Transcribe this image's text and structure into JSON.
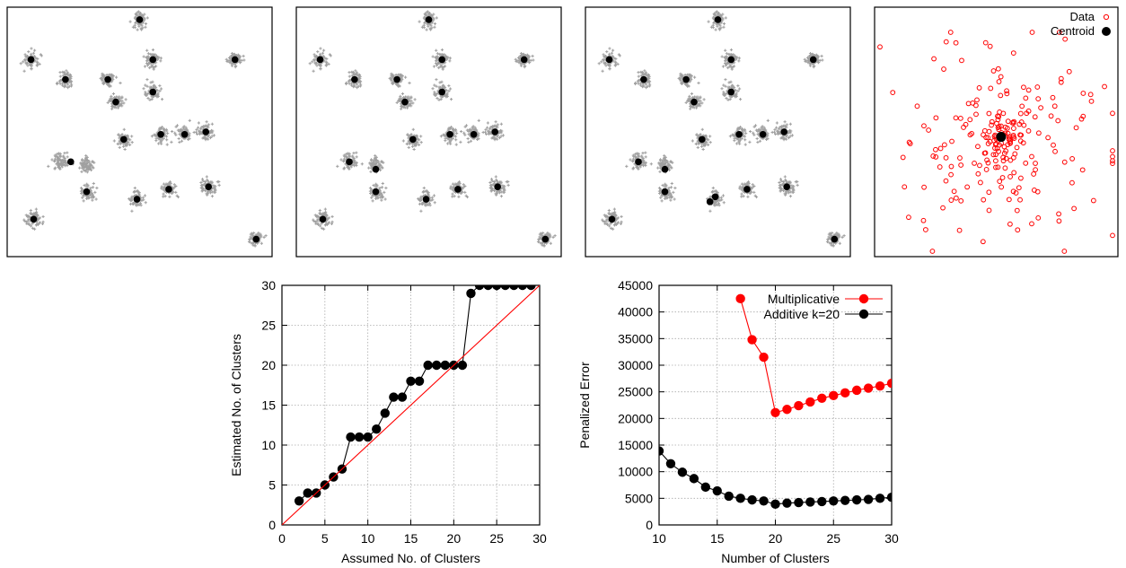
{
  "chart_data": [
    {
      "type": "scatter",
      "panel": "clusters-1",
      "centroids": [
        [
          0.5,
          0.95
        ],
        [
          0.09,
          0.79
        ],
        [
          0.22,
          0.71
        ],
        [
          0.38,
          0.71
        ],
        [
          0.55,
          0.79
        ],
        [
          0.55,
          0.66
        ],
        [
          0.41,
          0.62
        ],
        [
          0.86,
          0.79
        ],
        [
          0.44,
          0.47
        ],
        [
          0.58,
          0.49
        ],
        [
          0.67,
          0.49
        ],
        [
          0.75,
          0.5
        ],
        [
          0.24,
          0.38
        ],
        [
          0.3,
          0.26
        ],
        [
          0.49,
          0.23
        ],
        [
          0.61,
          0.27
        ],
        [
          0.76,
          0.28
        ],
        [
          0.1,
          0.15
        ],
        [
          0.94,
          0.07
        ]
      ],
      "clusters": [
        [
          0.5,
          0.95
        ],
        [
          0.09,
          0.79
        ],
        [
          0.22,
          0.71
        ],
        [
          0.38,
          0.71
        ],
        [
          0.55,
          0.79
        ],
        [
          0.55,
          0.66
        ],
        [
          0.41,
          0.62
        ],
        [
          0.86,
          0.79
        ],
        [
          0.44,
          0.47
        ],
        [
          0.58,
          0.49
        ],
        [
          0.67,
          0.49
        ],
        [
          0.75,
          0.5
        ],
        [
          0.2,
          0.38
        ],
        [
          0.3,
          0.37
        ],
        [
          0.3,
          0.26
        ],
        [
          0.49,
          0.23
        ],
        [
          0.61,
          0.27
        ],
        [
          0.76,
          0.28
        ],
        [
          0.1,
          0.15
        ],
        [
          0.94,
          0.07
        ]
      ]
    },
    {
      "type": "scatter",
      "panel": "clusters-2",
      "centroids": [
        [
          0.5,
          0.95
        ],
        [
          0.09,
          0.79
        ],
        [
          0.22,
          0.71
        ],
        [
          0.38,
          0.71
        ],
        [
          0.55,
          0.79
        ],
        [
          0.55,
          0.66
        ],
        [
          0.41,
          0.62
        ],
        [
          0.86,
          0.79
        ],
        [
          0.44,
          0.47
        ],
        [
          0.58,
          0.49
        ],
        [
          0.67,
          0.49
        ],
        [
          0.75,
          0.5
        ],
        [
          0.2,
          0.38
        ],
        [
          0.3,
          0.35
        ],
        [
          0.3,
          0.26
        ],
        [
          0.49,
          0.23
        ],
        [
          0.61,
          0.27
        ],
        [
          0.76,
          0.28
        ],
        [
          0.1,
          0.15
        ],
        [
          0.94,
          0.07
        ]
      ],
      "clusters": [
        [
          0.5,
          0.95
        ],
        [
          0.09,
          0.79
        ],
        [
          0.22,
          0.71
        ],
        [
          0.38,
          0.71
        ],
        [
          0.55,
          0.79
        ],
        [
          0.55,
          0.66
        ],
        [
          0.41,
          0.62
        ],
        [
          0.86,
          0.79
        ],
        [
          0.44,
          0.47
        ],
        [
          0.58,
          0.49
        ],
        [
          0.67,
          0.49
        ],
        [
          0.75,
          0.5
        ],
        [
          0.2,
          0.38
        ],
        [
          0.3,
          0.37
        ],
        [
          0.3,
          0.26
        ],
        [
          0.49,
          0.23
        ],
        [
          0.61,
          0.27
        ],
        [
          0.76,
          0.28
        ],
        [
          0.1,
          0.15
        ],
        [
          0.94,
          0.07
        ]
      ]
    },
    {
      "type": "scatter",
      "panel": "clusters-3",
      "centroids": [
        [
          0.5,
          0.95
        ],
        [
          0.09,
          0.79
        ],
        [
          0.22,
          0.71
        ],
        [
          0.38,
          0.71
        ],
        [
          0.55,
          0.79
        ],
        [
          0.55,
          0.66
        ],
        [
          0.41,
          0.62
        ],
        [
          0.86,
          0.79
        ],
        [
          0.44,
          0.47
        ],
        [
          0.58,
          0.49
        ],
        [
          0.67,
          0.49
        ],
        [
          0.75,
          0.5
        ],
        [
          0.2,
          0.38
        ],
        [
          0.3,
          0.35
        ],
        [
          0.3,
          0.26
        ],
        [
          0.49,
          0.24
        ],
        [
          0.47,
          0.22
        ],
        [
          0.61,
          0.27
        ],
        [
          0.76,
          0.28
        ],
        [
          0.1,
          0.15
        ],
        [
          0.94,
          0.07
        ]
      ],
      "clusters": [
        [
          0.5,
          0.95
        ],
        [
          0.09,
          0.79
        ],
        [
          0.22,
          0.71
        ],
        [
          0.38,
          0.71
        ],
        [
          0.55,
          0.79
        ],
        [
          0.55,
          0.66
        ],
        [
          0.41,
          0.62
        ],
        [
          0.86,
          0.79
        ],
        [
          0.44,
          0.47
        ],
        [
          0.58,
          0.49
        ],
        [
          0.67,
          0.49
        ],
        [
          0.75,
          0.5
        ],
        [
          0.2,
          0.38
        ],
        [
          0.3,
          0.37
        ],
        [
          0.3,
          0.26
        ],
        [
          0.49,
          0.23
        ],
        [
          0.61,
          0.27
        ],
        [
          0.76,
          0.28
        ],
        [
          0.1,
          0.15
        ],
        [
          0.94,
          0.07
        ]
      ]
    },
    {
      "type": "scatter",
      "panel": "centroid-data",
      "legend": [
        "Data",
        "Centroid"
      ],
      "legend_position": "top-right",
      "data_color": "#ff0000",
      "centroid_color": "#000000",
      "centroid": [
        0.52,
        0.48
      ],
      "n_points": 230
    },
    {
      "type": "line",
      "xlabel": "Assumed No. of Clusters",
      "ylabel": "Estimated No. of Clusters",
      "xlim": [
        0,
        30
      ],
      "ylim": [
        0,
        30
      ],
      "xticks": [
        0,
        5,
        10,
        15,
        20,
        25,
        30
      ],
      "yticks": [
        0,
        5,
        10,
        15,
        20,
        25,
        30
      ],
      "grid": true,
      "series": [
        {
          "color": "#000000",
          "x": [
            2,
            3,
            4,
            5,
            6,
            7,
            8,
            9,
            10,
            11,
            12,
            13,
            14,
            15,
            16,
            17,
            18,
            19,
            20,
            21,
            22,
            23,
            24,
            25,
            26,
            27,
            28,
            29
          ],
          "y": [
            3,
            4,
            4,
            5,
            6,
            7,
            11,
            11,
            11,
            12,
            14,
            16,
            16,
            18,
            18,
            20,
            20,
            20,
            20,
            20,
            29,
            30,
            30,
            30,
            30,
            30,
            30,
            30
          ]
        },
        {
          "color": "#ff0000",
          "x": [
            0,
            30
          ],
          "y": [
            0,
            30
          ]
        }
      ]
    },
    {
      "type": "line",
      "xlabel": "Number of Clusters",
      "ylabel": "Penalized Error",
      "xlim": [
        10,
        30
      ],
      "ylim": [
        0,
        45000
      ],
      "xticks": [
        10,
        15,
        20,
        25,
        30
      ],
      "yticks": [
        0,
        5000,
        10000,
        15000,
        20000,
        25000,
        30000,
        35000,
        40000,
        45000
      ],
      "grid": true,
      "legend_position": "top-right",
      "series": [
        {
          "name": "Multiplicative",
          "color": "#ff0000",
          "x": [
            17,
            18,
            19,
            20,
            21,
            22,
            23,
            24,
            25,
            26,
            27,
            28,
            29,
            30
          ],
          "y": [
            42500,
            34800,
            31500,
            21100,
            21700,
            22400,
            23100,
            23800,
            24300,
            24800,
            25300,
            25700,
            26100,
            26600
          ]
        },
        {
          "name": "Additive k=20",
          "color": "#000000",
          "x": [
            10,
            11,
            12,
            13,
            14,
            15,
            16,
            17,
            18,
            19,
            20,
            21,
            22,
            23,
            24,
            25,
            26,
            27,
            28,
            29,
            30
          ],
          "y": [
            13900,
            11500,
            9900,
            8700,
            7100,
            6400,
            5400,
            5000,
            4700,
            4500,
            3900,
            4100,
            4200,
            4300,
            4400,
            4500,
            4600,
            4700,
            4800,
            5000,
            5200
          ]
        }
      ]
    }
  ]
}
